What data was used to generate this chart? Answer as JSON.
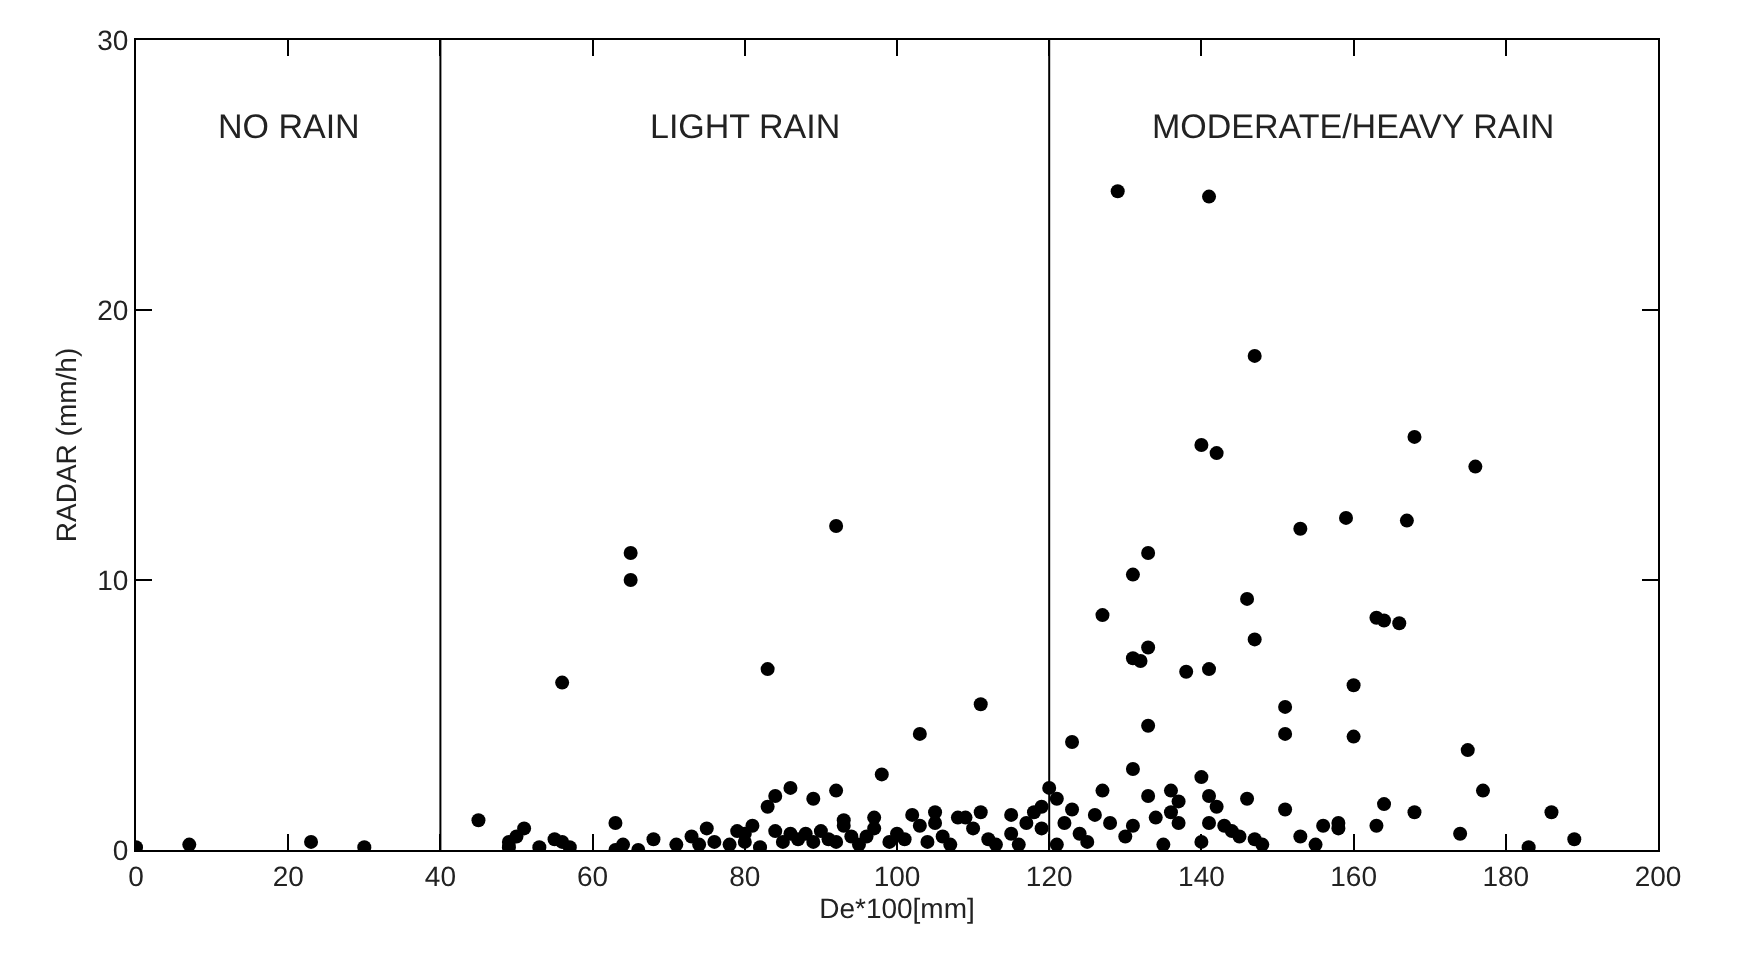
{
  "chart_data": {
    "type": "scatter",
    "xlabel": "De*100[mm]",
    "ylabel": "RADAR (mm/h)",
    "xlim": [
      0,
      200
    ],
    "ylim": [
      0,
      30
    ],
    "xticks": [
      0,
      20,
      40,
      60,
      80,
      100,
      120,
      140,
      160,
      180,
      200
    ],
    "yticks": [
      0,
      10,
      20,
      30
    ],
    "marker": "circle",
    "ref_lines": [
      {
        "axis": "x",
        "value": 40,
        "color": "#000000"
      },
      {
        "axis": "x",
        "value": 120,
        "color": "#000000"
      }
    ],
    "annotations": [
      "NO RAIN",
      "LIGHT RAIN",
      "MODERATE/HEAVY RAIN"
    ],
    "series": [
      {
        "color": "#000000",
        "x": [
          0,
          7,
          23,
          30,
          45,
          56,
          65,
          65,
          83,
          92,
          103,
          111,
          86,
          89,
          84,
          83,
          81,
          79,
          92,
          98,
          97,
          93,
          63,
          49,
          50,
          51,
          49,
          53,
          55,
          56,
          57,
          63,
          64,
          66,
          68,
          71,
          73,
          74,
          75,
          76,
          78,
          80,
          80,
          82,
          84,
          85,
          86,
          87,
          88,
          89,
          90,
          91,
          92,
          93,
          94,
          95,
          96,
          97,
          99,
          100,
          101,
          102,
          103,
          104,
          105,
          105,
          106,
          107,
          108,
          109,
          110,
          111,
          112,
          113,
          115,
          115,
          116,
          117,
          118,
          119,
          119,
          120,
          121,
          121,
          122,
          123,
          123,
          124,
          125,
          126,
          127,
          127,
          128,
          129,
          130,
          131,
          131,
          131,
          131,
          132,
          133,
          133,
          133,
          133,
          134,
          135,
          136,
          136,
          137,
          137,
          138,
          140,
          140,
          140,
          141,
          141,
          141,
          141,
          142,
          142,
          143,
          144,
          145,
          146,
          146,
          147,
          147,
          147,
          148,
          151,
          151,
          151,
          153,
          153,
          155,
          156,
          158,
          158,
          159,
          160,
          160,
          163,
          164,
          163,
          164,
          166,
          167,
          168,
          168,
          174,
          175,
          176,
          177,
          183,
          186,
          189
        ],
        "values": [
          0.1,
          0.2,
          0.3,
          0.1,
          1.1,
          6.2,
          11,
          10,
          6.7,
          12,
          4.3,
          5.4,
          2.3,
          1.9,
          2.0,
          1.6,
          0.9,
          0.7,
          2.2,
          2.8,
          1.2,
          1.1,
          1.0,
          0.3,
          0.5,
          0.8,
          0.1,
          0.1,
          0.4,
          0.3,
          0.1,
          0.0,
          0.2,
          0.0,
          0.4,
          0.2,
          0.5,
          0.2,
          0.8,
          0.3,
          0.2,
          0.6,
          0.3,
          0.1,
          0.7,
          0.3,
          0.6,
          0.4,
          0.6,
          0.3,
          0.7,
          0.4,
          0.3,
          0.9,
          0.5,
          0.2,
          0.5,
          0.8,
          0.3,
          0.6,
          0.4,
          1.3,
          0.9,
          0.3,
          1.4,
          1.0,
          0.5,
          0.2,
          1.2,
          1.2,
          0.8,
          1.4,
          0.4,
          0.2,
          1.3,
          0.6,
          0.2,
          1.0,
          1.4,
          1.6,
          0.8,
          2.3,
          1.9,
          0.2,
          1.0,
          4.0,
          1.5,
          0.6,
          0.3,
          1.3,
          8.7,
          2.2,
          1.0,
          24.4,
          0.5,
          10.2,
          7.1,
          3.0,
          0.9,
          7.0,
          11.0,
          7.5,
          4.6,
          2.0,
          1.2,
          0.2,
          2.2,
          1.4,
          1.8,
          1.0,
          6.6,
          15.0,
          2.7,
          0.3,
          24.2,
          6.7,
          2.0,
          1.0,
          14.7,
          1.6,
          0.9,
          0.7,
          0.5,
          9.3,
          1.9,
          18.3,
          7.8,
          0.4,
          0.2,
          5.3,
          4.3,
          1.5,
          11.9,
          0.5,
          0.2,
          0.9,
          1.0,
          0.8,
          12.3,
          6.1,
          4.2,
          8.6,
          8.5,
          0.9,
          1.7,
          8.4,
          12.2,
          15.3,
          1.4,
          0.6,
          3.7,
          14.2,
          2.2,
          0.1,
          1.4,
          0.4
        ]
      }
    ]
  }
}
